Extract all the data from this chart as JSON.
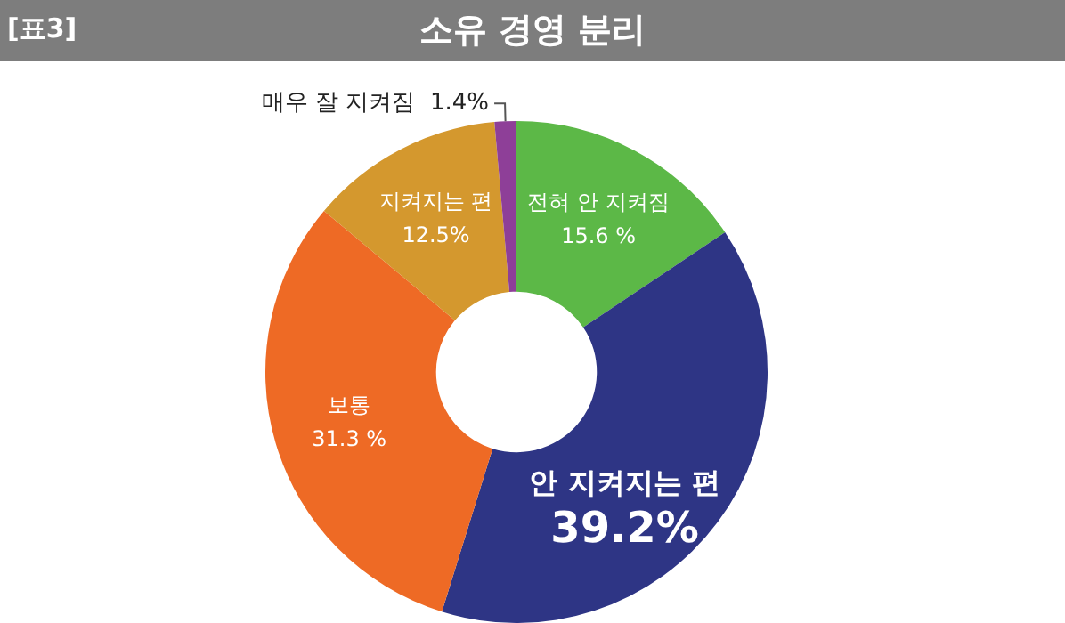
{
  "chart_data": {
    "type": "donut",
    "title": "소유 경영 분리",
    "annotations": [
      "[표3]"
    ],
    "categories": [
      "전혀 안 지켜짐",
      "안 지켜지는 편",
      "보통",
      "지켜지는 편",
      "매우 잘 지켜짐"
    ],
    "values": [
      15.6,
      39.2,
      31.3,
      12.5,
      1.4
    ],
    "value_labels": [
      "15.6 %",
      "39.2%",
      "31.3 %",
      "12.5%",
      "1.4%"
    ],
    "colors": [
      "#5cb847",
      "#2e3585",
      "#ee6a25",
      "#d4982e",
      "#8e3f98"
    ],
    "legend": false
  }
}
